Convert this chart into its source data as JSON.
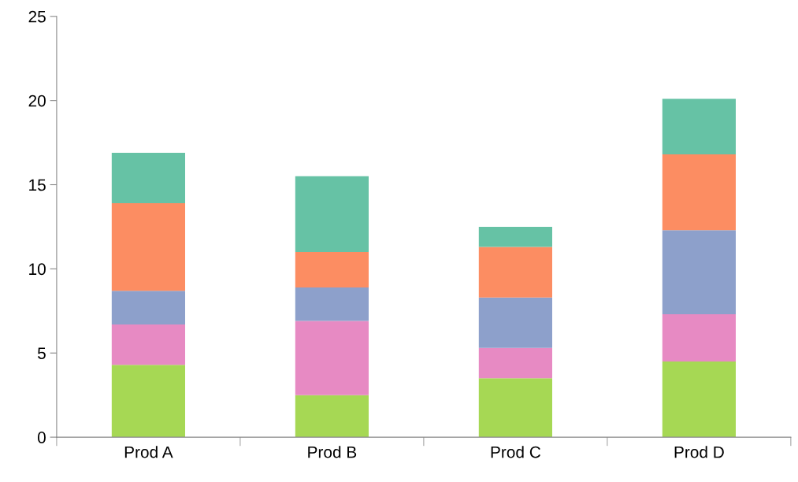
{
  "chart_data": {
    "type": "bar",
    "stacked": true,
    "categories": [
      "Prod A",
      "Prod B",
      "Prod C",
      "Prod D"
    ],
    "series": [
      {
        "color": "#a6d854",
        "values": [
          4.3,
          2.5,
          3.5,
          4.5
        ]
      },
      {
        "color": "#e78ac3",
        "values": [
          2.4,
          4.4,
          1.8,
          2.8
        ]
      },
      {
        "color": "#8da0cb",
        "values": [
          2.0,
          2.0,
          3.0,
          5.0
        ]
      },
      {
        "color": "#fc8d62",
        "values": [
          5.2,
          2.1,
          3.0,
          4.5
        ]
      },
      {
        "color": "#66c2a5",
        "values": [
          3.0,
          4.5,
          1.2,
          3.3
        ]
      }
    ],
    "ylim": [
      0,
      25
    ],
    "yticks": [
      0,
      5,
      10,
      15,
      20,
      25
    ],
    "grid": false,
    "legend": false
  }
}
